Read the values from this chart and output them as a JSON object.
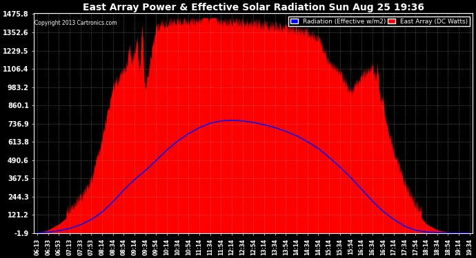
{
  "title": "East Array Power & Effective Solar Radiation Sun Aug 25 19:36",
  "copyright": "Copyright 2013 Cartronics.com",
  "legend_radiation": "Radiation (Effective w/m2)",
  "legend_east": "East Array (DC Watts)",
  "legend_radiation_bg": "#0000ff",
  "legend_east_bg": "#ff0000",
  "background_color": "#000000",
  "plot_bg_color": "#000000",
  "title_color": "#ffffff",
  "grid_color": "#ffffff",
  "tick_color": "#ffffff",
  "ymin": -1.9,
  "ymax": 1475.8,
  "yticks": [
    -1.9,
    121.2,
    244.3,
    367.5,
    490.6,
    613.8,
    736.9,
    860.1,
    983.2,
    1106.4,
    1229.5,
    1352.6,
    1475.8
  ],
  "x_labels": [
    "06:13",
    "06:33",
    "06:53",
    "07:13",
    "07:33",
    "07:53",
    "08:14",
    "08:34",
    "08:54",
    "09:14",
    "09:34",
    "09:54",
    "10:14",
    "10:34",
    "10:54",
    "11:14",
    "11:34",
    "11:54",
    "12:14",
    "12:34",
    "12:54",
    "13:14",
    "13:34",
    "13:54",
    "14:14",
    "14:34",
    "14:54",
    "15:14",
    "15:34",
    "15:54",
    "16:14",
    "16:34",
    "16:54",
    "17:14",
    "17:34",
    "17:54",
    "18:14",
    "18:34",
    "18:54",
    "19:14",
    "19:34"
  ],
  "red_area_color": "#ff0000",
  "blue_line_color": "#0000ff",
  "east_array_values": [
    0,
    20,
    60,
    120,
    200,
    310,
    600,
    950,
    1050,
    1150,
    920,
    1350,
    1380,
    1390,
    1390,
    1390,
    1390,
    1390,
    1390,
    1380,
    1370,
    1360,
    1350,
    1340,
    1330,
    1310,
    1280,
    1100,
    1050,
    900,
    1020,
    1080,
    780,
    500,
    300,
    150,
    60,
    20,
    5,
    2,
    0
  ],
  "radiation_values": [
    0,
    5,
    15,
    30,
    55,
    90,
    140,
    210,
    290,
    360,
    420,
    490,
    560,
    620,
    670,
    710,
    740,
    755,
    760,
    755,
    745,
    730,
    710,
    685,
    655,
    615,
    570,
    510,
    445,
    375,
    295,
    215,
    145,
    90,
    45,
    18,
    6,
    2,
    0,
    0,
    0
  ]
}
